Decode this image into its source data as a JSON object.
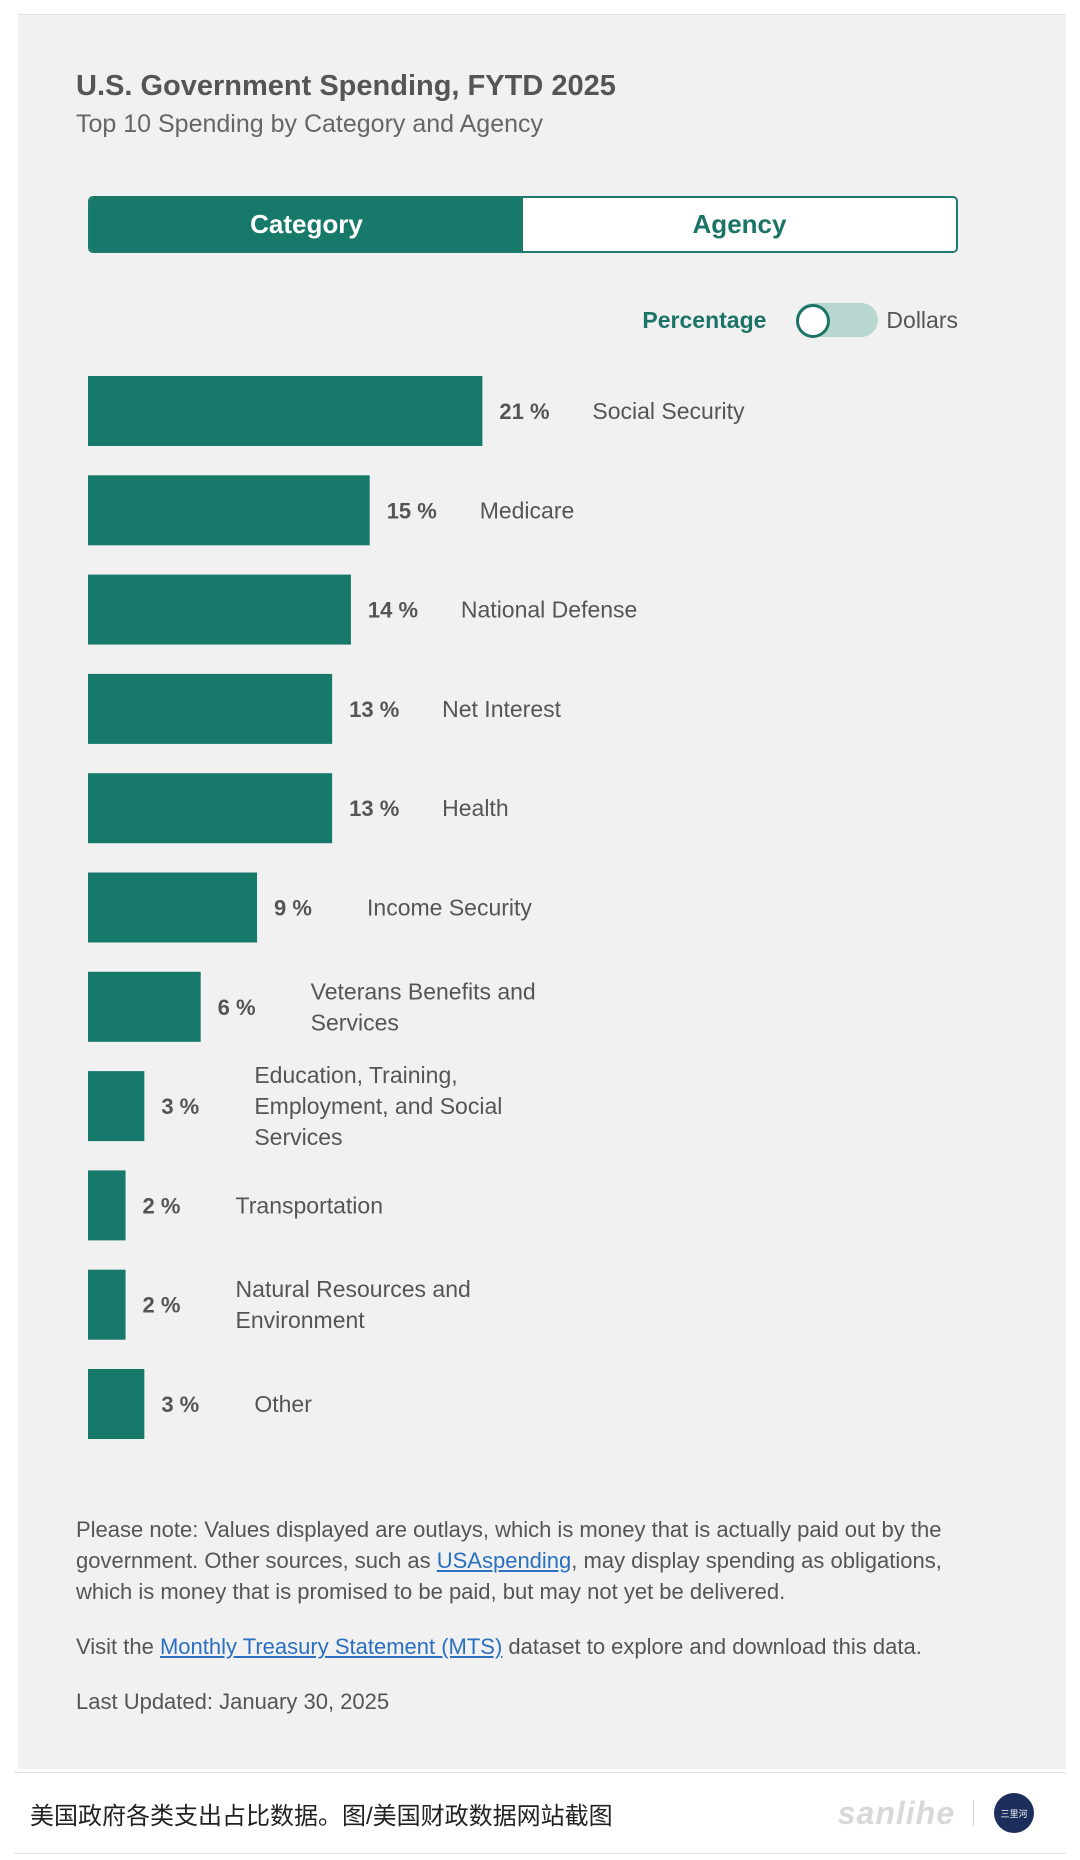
{
  "header": {
    "title": "U.S. Government Spending, FYTD 2025",
    "subtitle": "Top 10 Spending by Category and Agency"
  },
  "tabs": [
    {
      "label": "Category",
      "active": true
    },
    {
      "label": "Agency",
      "active": false
    }
  ],
  "toggle": {
    "left_label": "Percentage",
    "right_label": "Dollars",
    "selected": "Percentage"
  },
  "colors": {
    "bar": "#17796a",
    "accent": "#1c7466",
    "link": "#2a6fc0"
  },
  "chart_data": {
    "type": "bar",
    "orientation": "horizontal",
    "categories": [
      "Social Security",
      "Medicare",
      "National Defense",
      "Net Interest",
      "Health",
      "Income Security",
      "Veterans Benefits and Services",
      "Education, Training, Employment, and Social Services",
      "Transportation",
      "Natural Resources and Environment",
      "Other"
    ],
    "values": [
      21,
      15,
      14,
      13,
      13,
      9,
      6,
      3,
      2,
      2,
      3
    ],
    "value_labels": [
      "21 %",
      "15 %",
      "14 %",
      "13 %",
      "13 %",
      "9 %",
      "6 %",
      "3 %",
      "2 %",
      "2 %",
      "3 %"
    ],
    "unit": "%",
    "grid": false
  },
  "notes": {
    "note_before": "Please note: Values displayed are outlays, which is money that is actually paid out by the government. Other sources, such as ",
    "note_link": "USAspending",
    "note_after": ", may display spending as obligations, which is money that is promised to be paid, but may not yet be delivered.",
    "visit_before": "Visit the ",
    "visit_link": "Monthly Treasury Statement (MTS)",
    "visit_after": " dataset to explore and download this data.",
    "last_updated": "Last Updated: January 30, 2025"
  },
  "caption": {
    "text": "美国政府各类支出占比数据。图/美国财政数据网站截图",
    "watermark": "sanlihe",
    "avatar_text": "三里河"
  }
}
